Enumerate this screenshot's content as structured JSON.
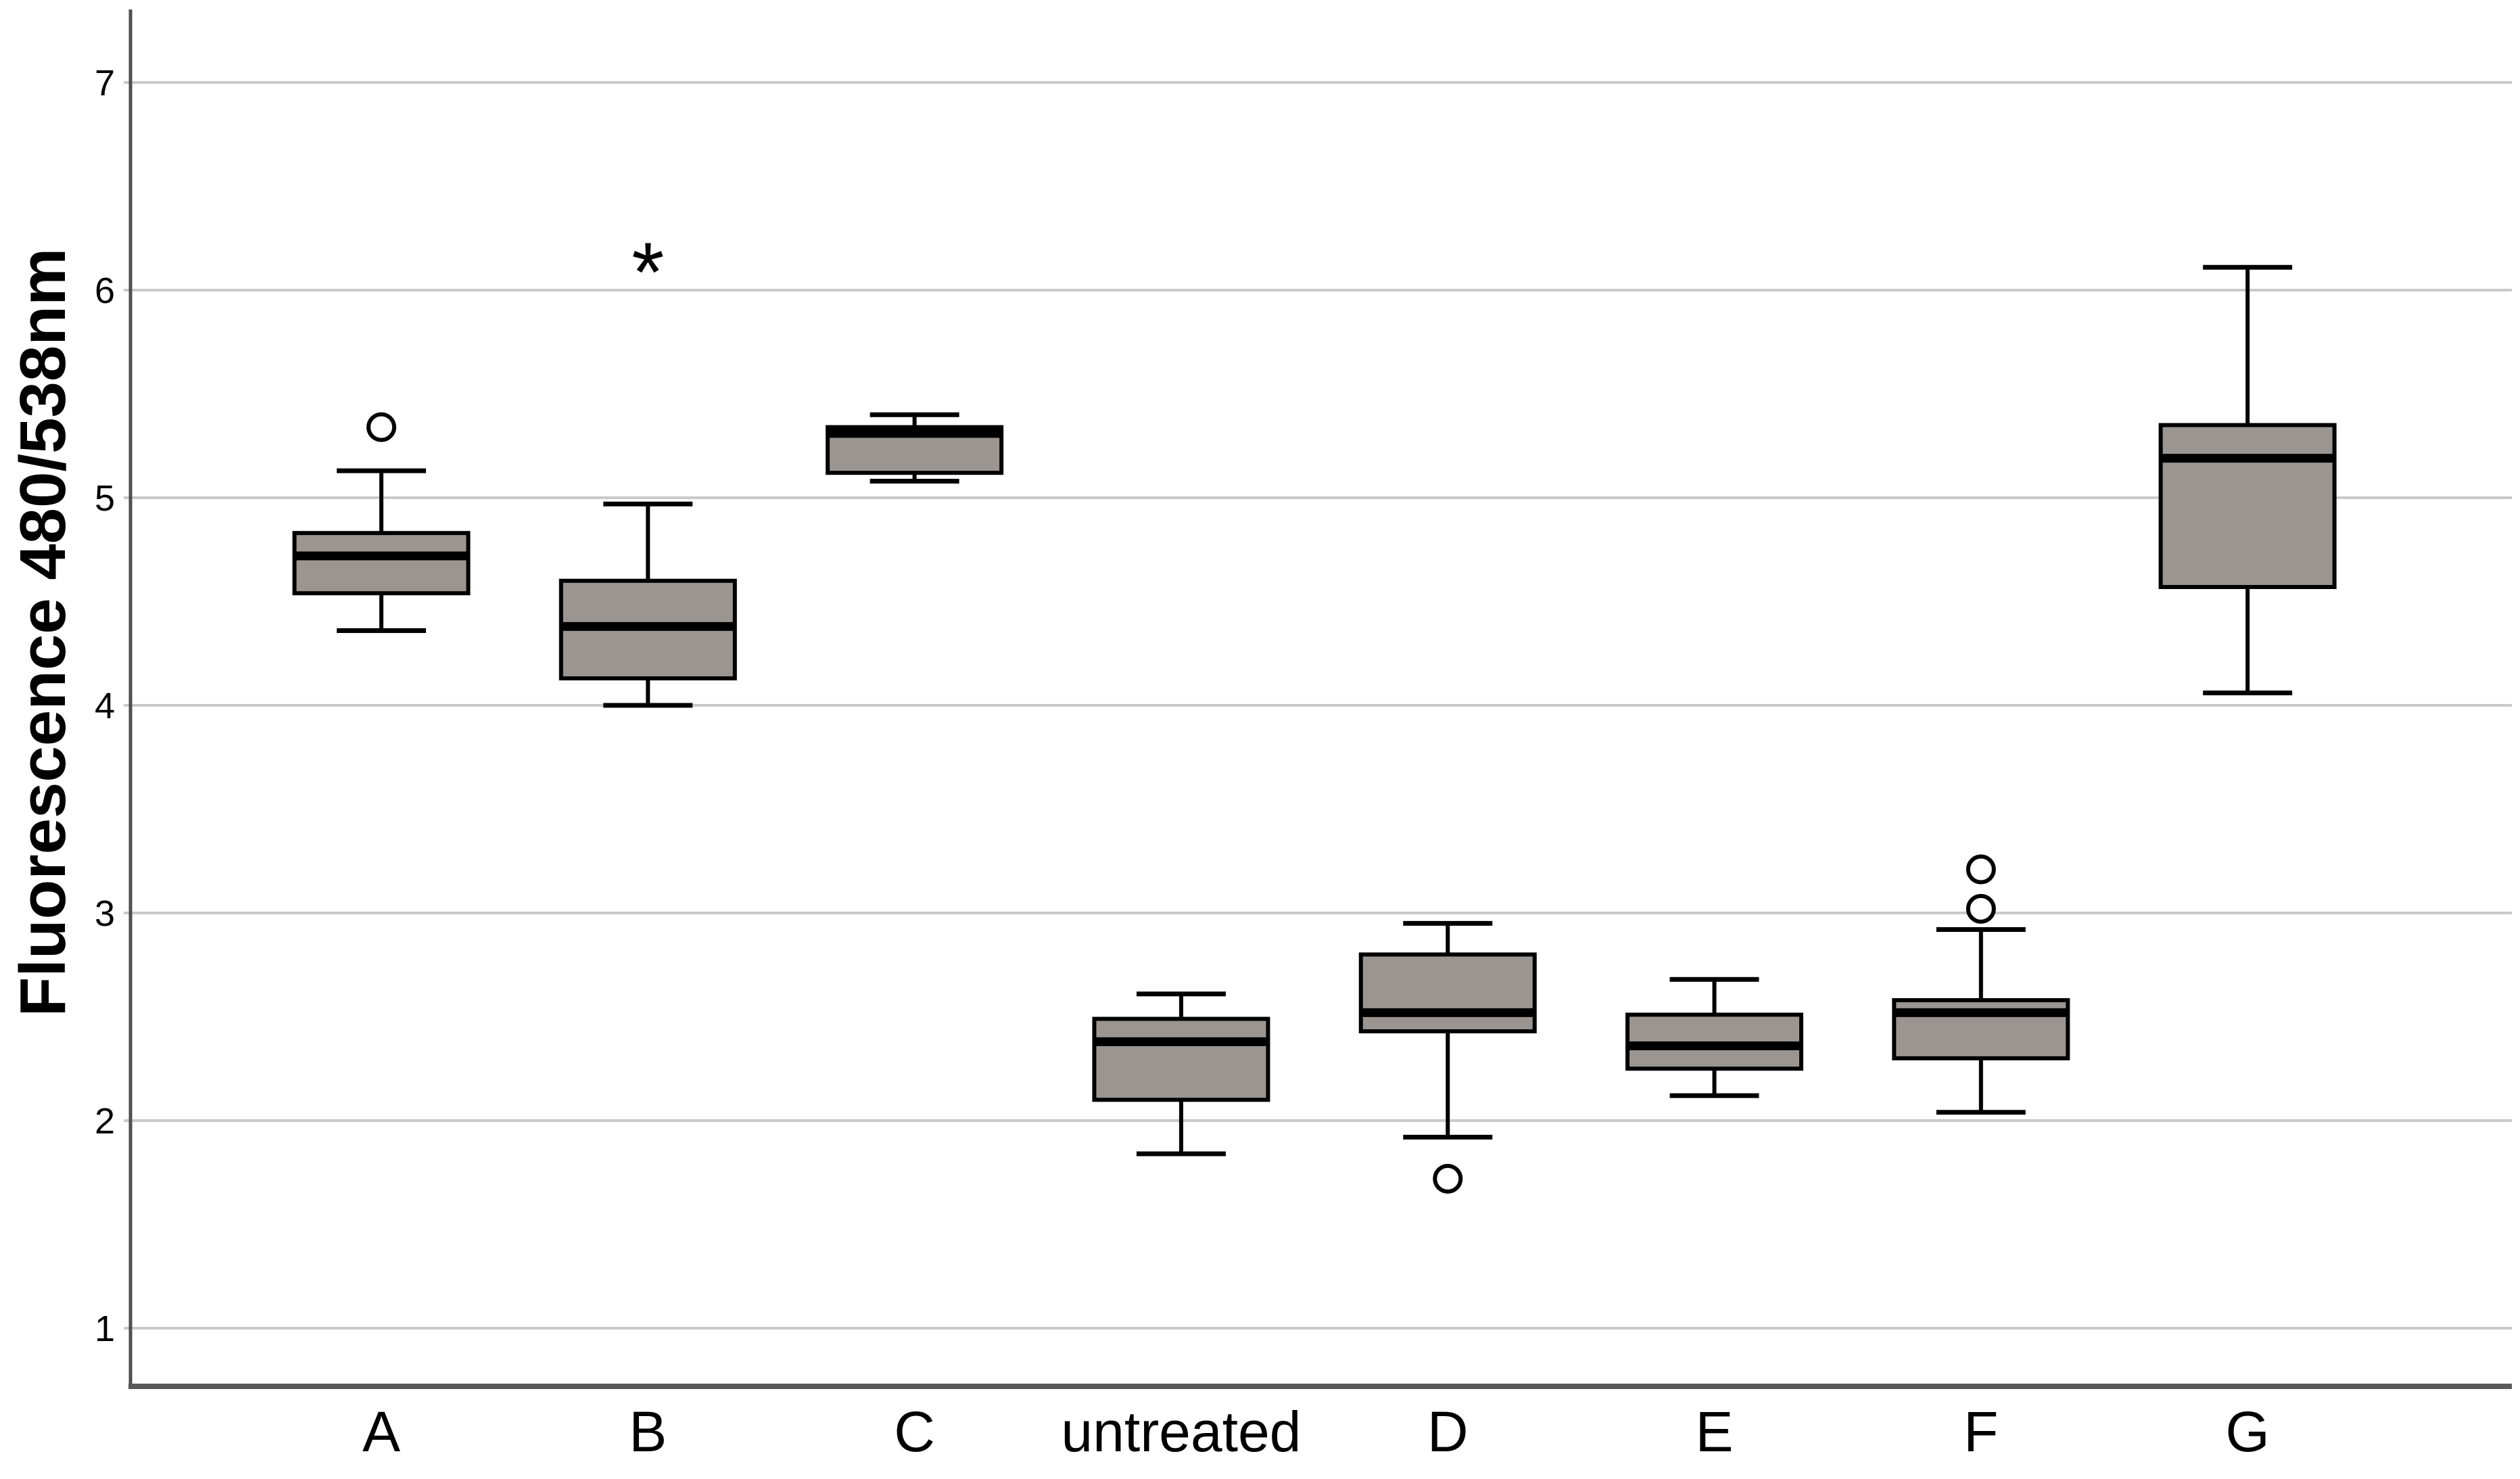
{
  "chart_data": {
    "type": "boxplot",
    "title": "",
    "xlabel": "",
    "ylabel": "Fluorescence 480/538nm",
    "y_ticks": [
      7,
      6,
      5,
      4,
      3,
      2,
      1
    ],
    "ylim": [
      0.72,
      7.35
    ],
    "grid": "horizontal-only",
    "legend": "none",
    "categories": [
      "A",
      "B",
      "C",
      "untreated",
      "D",
      "E",
      "F",
      "G"
    ],
    "series": [
      {
        "label": "A",
        "whisker_low": 4.36,
        "q1": 4.54,
        "median": 4.72,
        "q3": 4.83,
        "whisker_high": 5.13,
        "outliers": [
          5.34
        ],
        "extremes": []
      },
      {
        "label": "B",
        "whisker_low": 4.0,
        "q1": 4.13,
        "median": 4.38,
        "q3": 4.6,
        "whisker_high": 4.97,
        "outliers": [],
        "extremes": [
          6.15
        ]
      },
      {
        "label": "C",
        "whisker_low": 5.08,
        "q1": 5.12,
        "median": 5.31,
        "q3": 5.34,
        "whisker_high": 5.4,
        "outliers": [],
        "extremes": []
      },
      {
        "label": "untreated",
        "whisker_low": 1.84,
        "q1": 2.1,
        "median": 2.38,
        "q3": 2.49,
        "whisker_high": 2.61,
        "outliers": [],
        "extremes": []
      },
      {
        "label": "D",
        "whisker_low": 1.92,
        "q1": 2.43,
        "median": 2.52,
        "q3": 2.8,
        "whisker_high": 2.95,
        "outliers": [
          1.72
        ],
        "extremes": []
      },
      {
        "label": "E",
        "whisker_low": 2.12,
        "q1": 2.25,
        "median": 2.36,
        "q3": 2.51,
        "whisker_high": 2.68,
        "outliers": [],
        "extremes": []
      },
      {
        "label": "F",
        "whisker_low": 2.04,
        "q1": 2.3,
        "median": 2.52,
        "q3": 2.58,
        "whisker_high": 2.92,
        "outliers": [
          3.02,
          3.21
        ],
        "extremes": []
      },
      {
        "label": "G",
        "whisker_low": 4.06,
        "q1": 4.57,
        "median": 5.19,
        "q3": 5.35,
        "whisker_high": 6.11,
        "outliers": [],
        "extremes": []
      }
    ],
    "colors": {
      "box_fill": "#9a9591",
      "box_border": "#000000",
      "median": "#000000",
      "whisker": "#000000",
      "outlier_ring": "#000000",
      "outlier_fill": "#ffffff",
      "gridline": "#c9c9c9",
      "y_axis": "#4f4f4f",
      "x_axis": "#5a5a5a",
      "background": "#ffffff"
    }
  }
}
